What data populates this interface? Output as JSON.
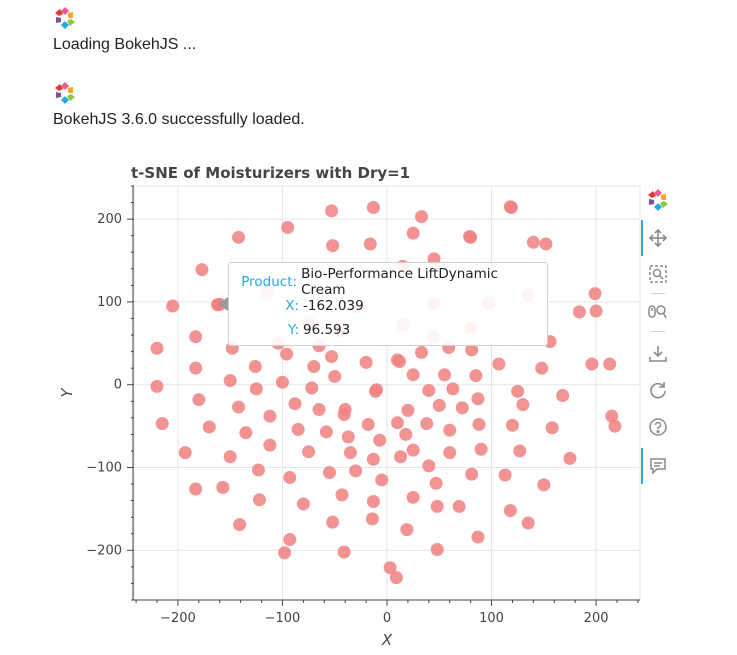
{
  "log": {
    "loading_text": "Loading BokehJS ...",
    "loaded_text": "BokehJS 3.6.0 successfully loaded."
  },
  "colors": {
    "marker": "#f08080",
    "tooltip_key": "#26aae1",
    "toolbar_active": "#26aae1"
  },
  "toolbar": {
    "icons": [
      "bokeh-logo-icon",
      "pan-icon",
      "box-zoom-icon",
      "wheel-zoom-icon",
      "save-icon",
      "reset-icon",
      "help-icon",
      "hover-icon"
    ]
  },
  "tooltip": {
    "product_key": "Product:",
    "product_value": "Bio-Performance LiftDynamic Cream",
    "x_key": "X:",
    "x_value": "-162.039",
    "y_key": "Y:",
    "y_value": "96.593"
  },
  "chart_data": {
    "type": "scatter",
    "title": "t-SNE of Moisturizers with Dry=1",
    "xlabel": "X",
    "ylabel": "Y",
    "xlim": [
      -242,
      242
    ],
    "ylim": [
      -260,
      240
    ],
    "x_ticks": [
      -200,
      -100,
      0,
      100,
      200
    ],
    "x_tick_labels": [
      "−200",
      "−100",
      "0",
      "100",
      "200"
    ],
    "y_ticks": [
      -200,
      -100,
      0,
      100,
      200
    ],
    "y_tick_labels": [
      "−200",
      "−100",
      "0",
      "100",
      "200"
    ],
    "grid": true,
    "points": [
      {
        "x": -53,
        "y": 210
      },
      {
        "x": -13,
        "y": 214
      },
      {
        "x": 33,
        "y": 203
      },
      {
        "x": 118,
        "y": 215
      },
      {
        "x": 119,
        "y": 214
      },
      {
        "x": -95,
        "y": 190
      },
      {
        "x": -52,
        "y": 168
      },
      {
        "x": -16,
        "y": 170
      },
      {
        "x": 25,
        "y": 183
      },
      {
        "x": 79,
        "y": 179
      },
      {
        "x": 80,
        "y": 178
      },
      {
        "x": 140,
        "y": 172
      },
      {
        "x": 152,
        "y": 170
      },
      {
        "x": -142,
        "y": 178
      },
      {
        "x": 45,
        "y": 152
      },
      {
        "x": -177,
        "y": 139
      },
      {
        "x": -205,
        "y": 95
      },
      {
        "x": -160,
        "y": 97
      },
      {
        "x": 199,
        "y": 110
      },
      {
        "x": 200,
        "y": 89
      },
      {
        "x": 184,
        "y": 88
      },
      {
        "x": -183,
        "y": 58
      },
      {
        "x": -104,
        "y": 50
      },
      {
        "x": 44,
        "y": 58
      },
      {
        "x": 156,
        "y": 52
      },
      {
        "x": -148,
        "y": 44
      },
      {
        "x": -220,
        "y": 44
      },
      {
        "x": -65,
        "y": 47
      },
      {
        "x": -96,
        "y": 37
      },
      {
        "x": -53,
        "y": 34
      },
      {
        "x": -20,
        "y": 27
      },
      {
        "x": 10,
        "y": 30
      },
      {
        "x": 33,
        "y": 39
      },
      {
        "x": 59,
        "y": 45
      },
      {
        "x": 81,
        "y": 42
      },
      {
        "x": -126,
        "y": 22
      },
      {
        "x": -70,
        "y": 22
      },
      {
        "x": 12,
        "y": 28
      },
      {
        "x": 25,
        "y": 12
      },
      {
        "x": 55,
        "y": 12
      },
      {
        "x": 85,
        "y": 11
      },
      {
        "x": 107,
        "y": 25
      },
      {
        "x": 148,
        "y": 20
      },
      {
        "x": 196,
        "y": 25
      },
      {
        "x": 213,
        "y": 25
      },
      {
        "x": -183,
        "y": 20
      },
      {
        "x": -150,
        "y": 5
      },
      {
        "x": -220,
        "y": -2
      },
      {
        "x": -100,
        "y": 3
      },
      {
        "x": -125,
        "y": -5
      },
      {
        "x": -72,
        "y": -4
      },
      {
        "x": -50,
        "y": 10
      },
      {
        "x": -10,
        "y": -6
      },
      {
        "x": -11,
        "y": -8
      },
      {
        "x": 40,
        "y": -7
      },
      {
        "x": 63,
        "y": -5
      },
      {
        "x": 125,
        "y": -8
      },
      {
        "x": 168,
        "y": -13
      },
      {
        "x": -180,
        "y": -18
      },
      {
        "x": -88,
        "y": -23
      },
      {
        "x": -40,
        "y": -30
      },
      {
        "x": 87,
        "y": -17
      },
      {
        "x": 130,
        "y": -24
      },
      {
        "x": -142,
        "y": -27
      },
      {
        "x": -65,
        "y": -30
      },
      {
        "x": 20,
        "y": -31
      },
      {
        "x": 50,
        "y": -25
      },
      {
        "x": 72,
        "y": -28
      },
      {
        "x": -41,
        "y": -36
      },
      {
        "x": -112,
        "y": -38
      },
      {
        "x": 215,
        "y": -38
      },
      {
        "x": -215,
        "y": -47
      },
      {
        "x": -170,
        "y": -51
      },
      {
        "x": -18,
        "y": -48
      },
      {
        "x": 10,
        "y": -46
      },
      {
        "x": 38,
        "y": -47
      },
      {
        "x": 88,
        "y": -48
      },
      {
        "x": 120,
        "y": -49
      },
      {
        "x": 218,
        "y": -50
      },
      {
        "x": -135,
        "y": -58
      },
      {
        "x": -85,
        "y": -54
      },
      {
        "x": -58,
        "y": -57
      },
      {
        "x": -37,
        "y": -63
      },
      {
        "x": 18,
        "y": -60
      },
      {
        "x": 60,
        "y": -55
      },
      {
        "x": 158,
        "y": -52
      },
      {
        "x": -7,
        "y": -67
      },
      {
        "x": -112,
        "y": -73
      },
      {
        "x": -193,
        "y": -82
      },
      {
        "x": -150,
        "y": -87
      },
      {
        "x": -75,
        "y": -81
      },
      {
        "x": -35,
        "y": -82
      },
      {
        "x": -13,
        "y": -90
      },
      {
        "x": 25,
        "y": -79
      },
      {
        "x": 60,
        "y": -82
      },
      {
        "x": 90,
        "y": -78
      },
      {
        "x": 127,
        "y": -80
      },
      {
        "x": 175,
        "y": -89
      },
      {
        "x": -123,
        "y": -103
      },
      {
        "x": -55,
        "y": -106
      },
      {
        "x": -30,
        "y": -104
      },
      {
        "x": 13,
        "y": -87
      },
      {
        "x": 40,
        "y": -98
      },
      {
        "x": 81,
        "y": -108
      },
      {
        "x": 113,
        "y": -109
      },
      {
        "x": -93,
        "y": -112
      },
      {
        "x": -5,
        "y": -115
      },
      {
        "x": 47,
        "y": -119
      },
      {
        "x": -183,
        "y": -126
      },
      {
        "x": -157,
        "y": -124
      },
      {
        "x": -43,
        "y": -133
      },
      {
        "x": 150,
        "y": -121
      },
      {
        "x": -122,
        "y": -139
      },
      {
        "x": -13,
        "y": -141
      },
      {
        "x": 25,
        "y": -136
      },
      {
        "x": -80,
        "y": -144
      },
      {
        "x": 48,
        "y": -147
      },
      {
        "x": 69,
        "y": -147
      },
      {
        "x": 118,
        "y": -152
      },
      {
        "x": -52,
        "y": -166
      },
      {
        "x": -14,
        "y": -162
      },
      {
        "x": 135,
        "y": -167
      },
      {
        "x": -141,
        "y": -169
      },
      {
        "x": 19,
        "y": -175
      },
      {
        "x": -93,
        "y": -187
      },
      {
        "x": 87,
        "y": -184
      },
      {
        "x": -98,
        "y": -203
      },
      {
        "x": -41,
        "y": -202
      },
      {
        "x": 48,
        "y": -199
      },
      {
        "x": 3,
        "y": -221
      },
      {
        "x": 9,
        "y": -233
      }
    ],
    "faded_points_under_tooltip": [
      {
        "x": -115,
        "y": 110
      },
      {
        "x": -75,
        "y": 75
      },
      {
        "x": -30,
        "y": 93
      },
      {
        "x": 15,
        "y": 143
      },
      {
        "x": 45,
        "y": 98
      },
      {
        "x": 80,
        "y": 68
      },
      {
        "x": 97,
        "y": 98
      },
      {
        "x": 15,
        "y": 72
      },
      {
        "x": -45,
        "y": 65
      },
      {
        "x": 135,
        "y": 108
      }
    ],
    "hovered_point": {
      "x": -162.039,
      "y": 96.593
    }
  }
}
